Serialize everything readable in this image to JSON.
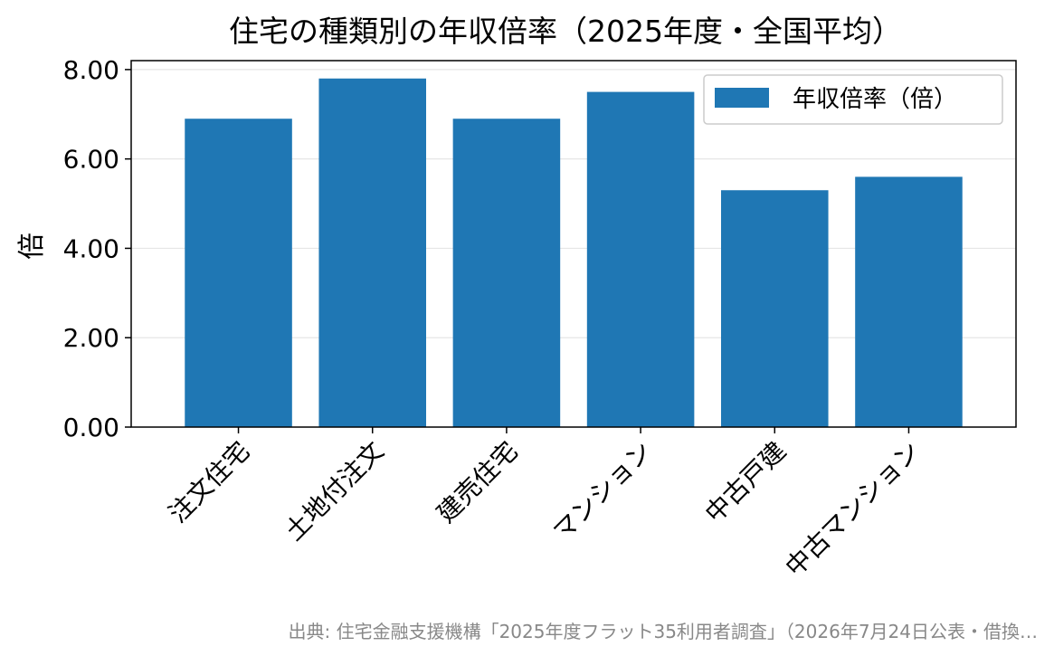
{
  "chart_data": {
    "type": "bar",
    "title": "住宅の種類別の年収倍率（2025年度・全国平均）",
    "ylabel": "倍",
    "categories": [
      "注文住宅",
      "土地付注文",
      "建売住宅",
      "マンション",
      "中古戸建",
      "中古マンション"
    ],
    "series": [
      {
        "name": "年収倍率（倍）",
        "values": [
          6.9,
          7.8,
          6.9,
          7.5,
          5.3,
          5.6
        ]
      }
    ],
    "ylim": [
      0,
      8.2
    ],
    "yticks": [
      0,
      2,
      4,
      6,
      8
    ],
    "ytick_labels": [
      "0.00",
      "2.00",
      "4.00",
      "6.00",
      "8.00"
    ],
    "grid": true,
    "legend_position": "top-right",
    "colors": {
      "bar": "#1f77b4",
      "grid": "#e6e6e6"
    }
  },
  "source": "出典: 住宅金融支援機構「2025年度フラット35利用者調査」（2026年7月24日公表・借換…"
}
